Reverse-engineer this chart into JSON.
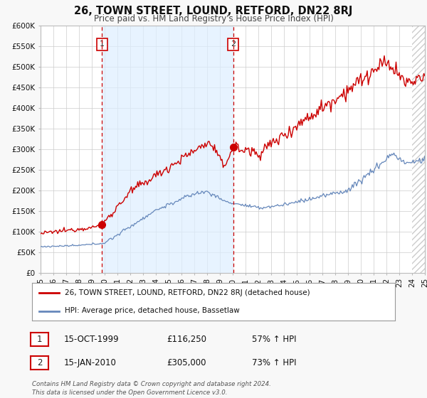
{
  "title": "26, TOWN STREET, LOUND, RETFORD, DN22 8RJ",
  "subtitle": "Price paid vs. HM Land Registry's House Price Index (HPI)",
  "red_label": "26, TOWN STREET, LOUND, RETFORD, DN22 8RJ (detached house)",
  "blue_label": "HPI: Average price, detached house, Bassetlaw",
  "sale1_label": "15-OCT-1999",
  "sale1_price": "£116,250",
  "sale1_hpi": "57% ↑ HPI",
  "sale2_label": "15-JAN-2010",
  "sale2_price": "£305,000",
  "sale2_hpi": "73% ↑ HPI",
  "footnote": "Contains HM Land Registry data © Crown copyright and database right 2024.\nThis data is licensed under the Open Government Licence v3.0.",
  "xmin": 1995,
  "xmax": 2025,
  "ymin": 0,
  "ymax": 600000,
  "yticks": [
    0,
    50000,
    100000,
    150000,
    200000,
    250000,
    300000,
    350000,
    400000,
    450000,
    500000,
    550000,
    600000
  ],
  "xtick_years": [
    1995,
    1996,
    1997,
    1998,
    1999,
    2000,
    2001,
    2002,
    2003,
    2004,
    2005,
    2006,
    2007,
    2008,
    2009,
    2010,
    2011,
    2012,
    2013,
    2014,
    2015,
    2016,
    2017,
    2018,
    2019,
    2020,
    2021,
    2022,
    2023,
    2024,
    2025
  ],
  "vline1_x": 1999.79,
  "vline2_x": 2010.04,
  "sale1_dot_x": 1999.79,
  "sale1_dot_y": 116250,
  "sale2_dot_x": 2010.04,
  "sale2_dot_y": 305000,
  "red_color": "#cc0000",
  "blue_color": "#6688bb",
  "shade_color": "#ddeeff",
  "grid_color": "#cccccc",
  "bg_color": "#f8f8f8"
}
